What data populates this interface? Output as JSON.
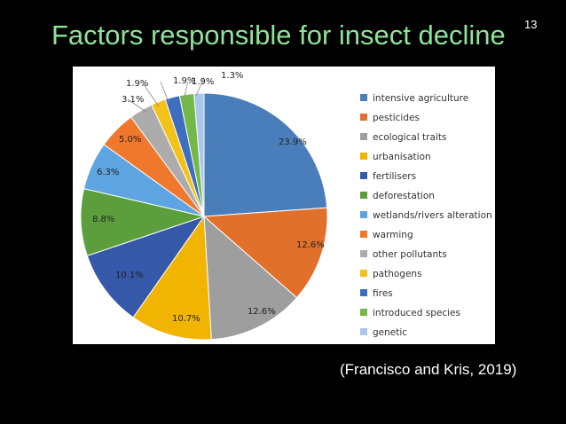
{
  "slide": {
    "title": "Factors responsible for insect decline",
    "page_number": "13",
    "citation": "(Francisco and Kris, 2019)"
  },
  "chart_data": {
    "type": "pie",
    "title": "",
    "legend_position": "right",
    "slices": [
      {
        "name": "intensive agriculture",
        "value": 23.9,
        "label": "23.9%",
        "color": "#4a7ebb"
      },
      {
        "name": "pesticides",
        "value": 12.6,
        "label": "12.6%",
        "color": "#e0702a"
      },
      {
        "name": "ecological traits",
        "value": 12.6,
        "label": "12.6%",
        "color": "#9e9e9e"
      },
      {
        "name": "urbanisation",
        "value": 10.7,
        "label": "10.7%",
        "color": "#f1b400"
      },
      {
        "name": "fertilisers",
        "value": 10.1,
        "label": "10.1%",
        "color": "#3558a8"
      },
      {
        "name": "deforestation",
        "value": 8.8,
        "label": "8.8%",
        "color": "#5c9e3c"
      },
      {
        "name": "wetlands/rivers alteration",
        "value": 6.3,
        "label": "6.3%",
        "color": "#5ea4e0"
      },
      {
        "name": "warming",
        "value": 5.0,
        "label": "5.0%",
        "color": "#f0782c"
      },
      {
        "name": "other pollutants",
        "value": 3.1,
        "label": "3.1%",
        "color": "#acacac"
      },
      {
        "name": "pathogens",
        "value": 1.9,
        "label": "1.9%",
        "color": "#f3c218"
      },
      {
        "name": "fires",
        "value": 1.9,
        "label": "1.9%",
        "color": "#3e6ec0"
      },
      {
        "name": "introduced species",
        "value": 1.9,
        "label": "1.9%",
        "color": "#74b84a"
      },
      {
        "name": "genetic",
        "value": 1.3,
        "label": "1.3%",
        "color": "#a9c6eb"
      }
    ]
  }
}
